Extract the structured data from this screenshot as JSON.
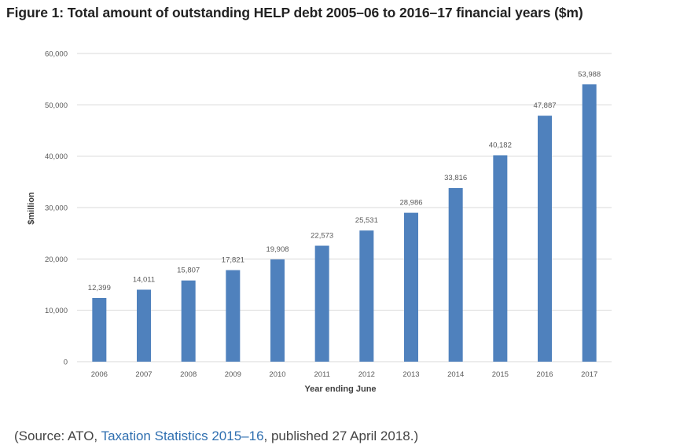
{
  "figure_title": "Figure 1: Total amount of outstanding HELP debt 2005–06 to 2016–17 financial years ($m)",
  "source": {
    "prefix": "(Source: ATO, ",
    "link_text": "Taxation Statistics 2015–16",
    "suffix": ", published 27 April 2018.)"
  },
  "colors": {
    "bar": "#4f81bd",
    "grid": "#d9d9d9",
    "tick_text": "#595959",
    "link": "#2f6fb0"
  },
  "chart_data": {
    "type": "bar",
    "title": "",
    "xlabel": "Year ending June",
    "ylabel": "$million",
    "ylim": [
      0,
      60000
    ],
    "yticks": [
      0,
      10000,
      20000,
      30000,
      40000,
      50000,
      60000
    ],
    "ytick_labels": [
      "0",
      "10,000",
      "20,000",
      "30,000",
      "40,000",
      "50,000",
      "60,000"
    ],
    "grid": true,
    "categories": [
      "2006",
      "2007",
      "2008",
      "2009",
      "2010",
      "2011",
      "2012",
      "2013",
      "2014",
      "2015",
      "2016",
      "2017"
    ],
    "values": [
      12399,
      14011,
      15807,
      17821,
      19908,
      22573,
      25531,
      28986,
      33816,
      40182,
      47887,
      53988
    ],
    "value_labels": [
      "12,399",
      "14,011",
      "15,807",
      "17,821",
      "19,908",
      "22,573",
      "25,531",
      "28,986",
      "33,816",
      "40,182",
      "47,887",
      "53,988"
    ]
  }
}
